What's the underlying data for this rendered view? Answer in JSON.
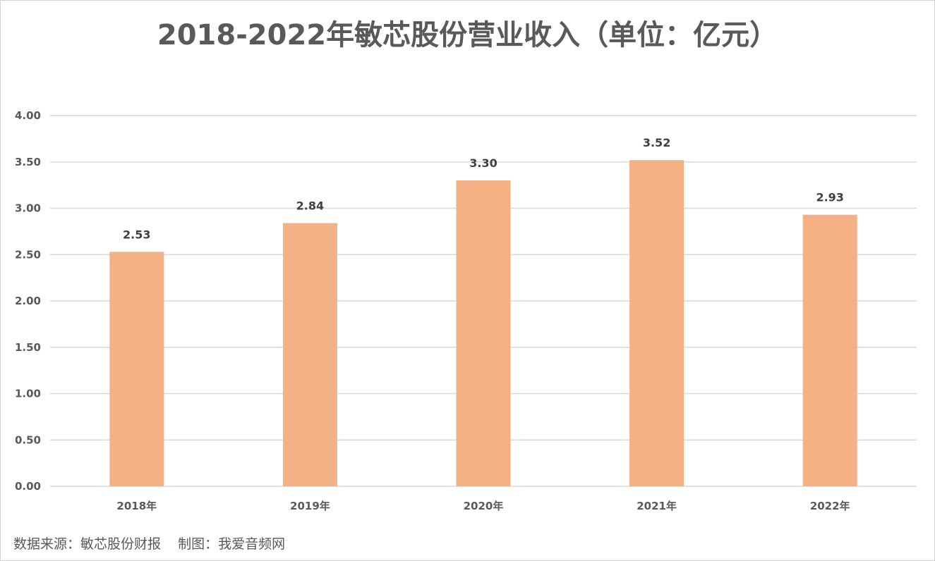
{
  "chart_data": {
    "type": "bar",
    "title": "2018-2022年敏芯股份营业收入（单位：亿元）",
    "categories": [
      "2018年",
      "2019年",
      "2020年",
      "2021年",
      "2022年"
    ],
    "values": [
      2.53,
      2.84,
      3.3,
      3.52,
      2.93
    ],
    "data_labels": [
      "2.53",
      "2.84",
      "3.30",
      "3.52",
      "2.93"
    ],
    "y_ticks": [
      "0.00",
      "0.50",
      "1.00",
      "1.50",
      "2.00",
      "2.50",
      "3.00",
      "3.50",
      "4.00"
    ],
    "ylim": [
      0,
      4
    ],
    "xlabel": "",
    "ylabel": "",
    "grid": true,
    "legend": "none",
    "bar_color": "#f4b183",
    "grid_color": "#d9d9d9"
  },
  "footer": {
    "source_text": "数据来源：敏芯股份财报    制图：我爱音频网"
  }
}
